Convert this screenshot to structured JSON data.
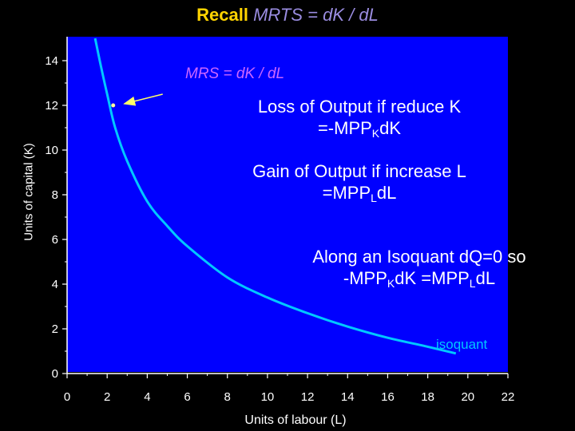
{
  "title": {
    "part1": "Recall",
    "part2": "MRTS = dK / dL"
  },
  "annotations": {
    "mrs_label": "MRS = dK / dL",
    "loss_line1": "Loss of Output if reduce K",
    "loss_line2_pre": "=-MPP",
    "loss_line2_sub": "K",
    "loss_line2_post": "dK",
    "gain_line1": "Gain of Output if increase L",
    "gain_line2_pre": "=MPP",
    "gain_line2_sub": "L",
    "gain_line2_post": "dL",
    "along_line1": "Along an Isoquant dQ=0 so",
    "along_line2_pre": "-MPP",
    "along_line2_sub1": "K",
    "along_line2_mid": "dK =MPP",
    "along_line2_sub2": "L",
    "along_line2_post": "dL",
    "isoquant_label": "isoquant"
  },
  "colors": {
    "background": "#000000",
    "plot_area": "#0000ff",
    "curve": "#00c8ff",
    "title_accent": "#ffd400",
    "title_formula": "#9a8ce0",
    "mrs": "#cc66ff",
    "arrow": "#ffff66"
  },
  "chart_data": {
    "type": "line",
    "xlabel": "Units of labour (L)",
    "ylabel": "Units of capital (K)",
    "xlim": [
      0,
      22
    ],
    "ylim": [
      0,
      15
    ],
    "xticks": [
      0,
      2,
      4,
      6,
      8,
      10,
      12,
      14,
      16,
      18,
      20,
      22
    ],
    "yticks": [
      0,
      2,
      4,
      6,
      8,
      10,
      12,
      14
    ],
    "grid": false,
    "series": [
      {
        "name": "isoquant",
        "x": [
          1.4,
          1.7,
          2.0,
          2.4,
          3.0,
          4.0,
          5.0,
          6.0,
          8.0,
          10.0,
          12.0,
          14.0,
          16.0,
          18.0,
          19.4
        ],
        "y": [
          15.0,
          13.7,
          12.5,
          11.0,
          9.5,
          7.7,
          6.6,
          5.7,
          4.3,
          3.4,
          2.7,
          2.1,
          1.6,
          1.2,
          0.9
        ]
      }
    ],
    "marker_point": {
      "x": 2.3,
      "y": 12.0
    }
  }
}
